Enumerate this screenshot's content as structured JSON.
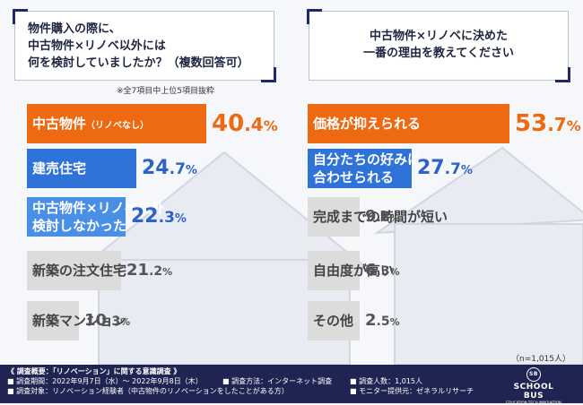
{
  "left_question": {
    "lines": [
      "物件購入の際に、",
      "中古物件×リノベ以外には",
      "何を検討していましたか？（複数回答可）"
    ],
    "note": "※全7項目中上位5項目抜粋"
  },
  "right_question": {
    "lines": [
      "中古物件×リノベに決めた",
      "一番の理由を教えてください"
    ]
  },
  "n_note": "（n=1,015人）",
  "colors": {
    "orange": "#ee6a12",
    "blue": "#2f72d8",
    "lightblue": "#4a8fe6",
    "gray": "#dcdcdc",
    "navy": "#1f2452"
  },
  "chart_data": [
    {
      "type": "bar",
      "orientation": "horizontal",
      "categories": [
        "中古物件（リノベなし）",
        "建売住宅",
        "中古物件×リノベ以外検討しなかった",
        "新築の注文住宅",
        "新築マンション"
      ],
      "label_lines": [
        [
          "中古物件",
          "（リノベなし）"
        ],
        [
          "建売住宅"
        ],
        [
          "中古物件×リノベ以外",
          "検討しなかった"
        ],
        [
          "新築の注文住宅"
        ],
        [
          "新築マンション"
        ]
      ],
      "values": [
        40.4,
        24.7,
        22.3,
        21.2,
        10.3
      ],
      "value_text": [
        [
          "40",
          ".4",
          "%"
        ],
        [
          "24",
          ".7",
          "%"
        ],
        [
          "22",
          ".3",
          "%"
        ],
        [
          "21",
          ".2",
          "%"
        ],
        [
          "10",
          ".3",
          "%"
        ]
      ],
      "xlim": [
        0,
        40.4
      ],
      "colors": [
        "#ee6a12",
        "#2f72d8",
        "#4a8fe6",
        "#dcdcdc",
        "#dcdcdc"
      ]
    },
    {
      "type": "bar",
      "orientation": "horizontal",
      "categories": [
        "価格が抑えられる",
        "自分たちの好みに合わせられる",
        "完成までの時間が短い",
        "自由度が高い",
        "その他"
      ],
      "label_lines": [
        [
          "価格が抑えられる"
        ],
        [
          "自分たちの好みに",
          "合わせられる"
        ],
        [
          "完成までの時間が短い"
        ],
        [
          "自由度が高い"
        ],
        [
          "その他"
        ]
      ],
      "values": [
        53.7,
        27.7,
        9.8,
        6.3,
        2.5
      ],
      "value_text": [
        [
          "53",
          ".7",
          "%"
        ],
        [
          "27",
          ".7",
          "%"
        ],
        [
          "9",
          ".8",
          "%"
        ],
        [
          "6",
          ".3",
          "%"
        ],
        [
          "2",
          ".5",
          "%"
        ]
      ],
      "xlim": [
        0,
        53.7
      ],
      "colors": [
        "#ee6a12",
        "#2f72d8",
        "#dcdcdc",
        "#dcdcdc",
        "#dcdcdc"
      ]
    }
  ],
  "footer": {
    "title": "《 調査概要：「リノベーション」に関する意識調査 》",
    "items": [
      "■ 調査期間：2022年9月7日（水）〜 2022年9月8日（木）",
      "■ 調査方法：インターネット調査",
      "■ 調査人数：1,015人",
      "■ 調査対象：リノベーション経験者（中古物件のリノベーションをしたことがある方）",
      "■ モニター提供元：ゼネラルリサーチ"
    ],
    "logo": "SCHOOL BUS",
    "logo_sub": "EDUCATION TECH INNOVATION",
    "logo_mark": "SB"
  }
}
